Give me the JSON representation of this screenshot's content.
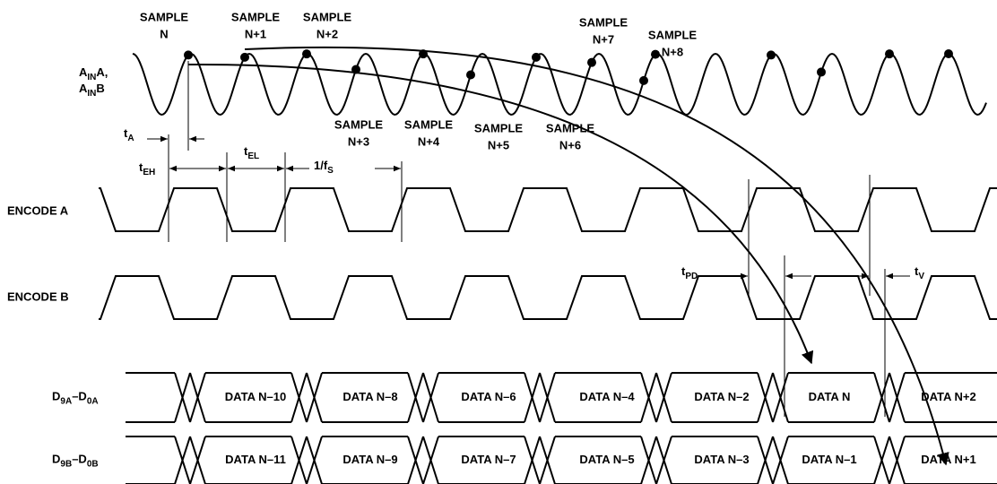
{
  "ain_label": [
    [
      "A",
      "IN",
      "A,"
    ],
    [
      "A",
      "IN",
      "B"
    ]
  ],
  "samples": [
    [
      "SAMPLE",
      "N"
    ],
    [
      "SAMPLE",
      "N+1"
    ],
    [
      "SAMPLE",
      "N+2"
    ],
    [
      "SAMPLE",
      "N+3"
    ],
    [
      "SAMPLE",
      "N+4"
    ],
    [
      "SAMPLE",
      "N+5"
    ],
    [
      "SAMPLE",
      "N+6"
    ],
    [
      "SAMPLE",
      "N+7"
    ],
    [
      "SAMPLE",
      "N+8"
    ]
  ],
  "timing": {
    "t_a": [
      "t",
      "A"
    ],
    "t_eh": [
      "t",
      "EH"
    ],
    "t_el": [
      "t",
      "EL"
    ],
    "period": [
      "1/f",
      "S"
    ],
    "t_pd": [
      "t",
      "PD"
    ],
    "t_v": [
      "t",
      "V"
    ]
  },
  "signals": {
    "encode_a": "ENCODE A",
    "encode_b": "ENCODE B"
  },
  "buses": [
    [
      "D",
      "9A",
      "–D",
      "0A"
    ],
    [
      "D",
      "9B",
      "–D",
      "0B"
    ]
  ],
  "data_a": [
    "DATA N–10",
    "DATA N–8",
    "DATA N–6",
    "DATA N–4",
    "DATA N–2",
    "DATA N",
    "DATA N+2"
  ],
  "data_b": [
    "DATA N–11",
    "DATA N–9",
    "DATA N–7",
    "DATA N–5",
    "DATA N–3",
    "DATA N–1",
    "DATA N+1"
  ]
}
